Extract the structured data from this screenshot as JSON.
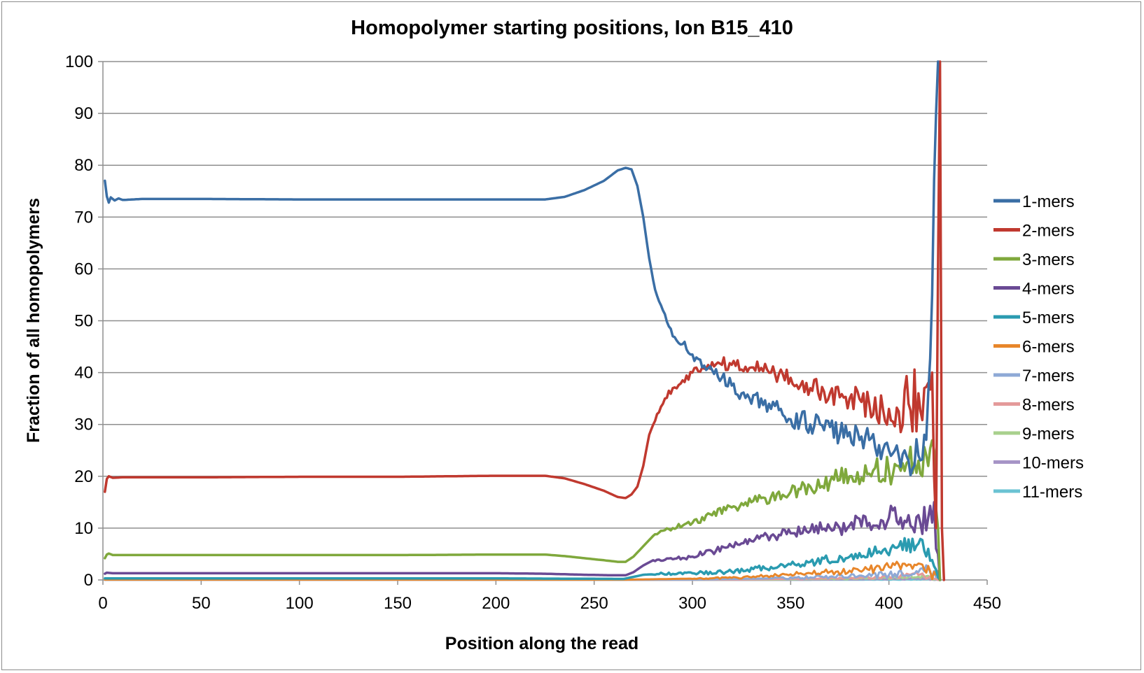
{
  "chart_data": {
    "type": "line",
    "title": "Homopolymer starting positions, Ion B15_410",
    "xlabel": "Position along the read",
    "ylabel": "Fraction of all homopolymers",
    "xlim": [
      0,
      450
    ],
    "ylim": [
      0,
      100
    ],
    "xticks": [
      0,
      50,
      100,
      150,
      200,
      250,
      300,
      350,
      400,
      450
    ],
    "yticks": [
      0,
      10,
      20,
      30,
      40,
      50,
      60,
      70,
      80,
      90,
      100
    ],
    "grid": "horizontal",
    "legend_position": "right",
    "series": [
      {
        "name": "1-mers",
        "color": "#3a6ea5",
        "width": 3.5,
        "points": [
          [
            1,
            77
          ],
          [
            2,
            74
          ],
          [
            3,
            72.8
          ],
          [
            4,
            73.8
          ],
          [
            6,
            73.2
          ],
          [
            8,
            73.6
          ],
          [
            10,
            73.3
          ],
          [
            20,
            73.5
          ],
          [
            50,
            73.5
          ],
          [
            100,
            73.4
          ],
          [
            150,
            73.4
          ],
          [
            200,
            73.4
          ],
          [
            225,
            73.4
          ],
          [
            235,
            73.9
          ],
          [
            245,
            75.2
          ],
          [
            255,
            77
          ],
          [
            262,
            79
          ],
          [
            266,
            79.5
          ],
          [
            269,
            79.2
          ],
          [
            272,
            76
          ],
          [
            275,
            70
          ],
          [
            278,
            62
          ],
          [
            281,
            56
          ],
          [
            285,
            52
          ],
          [
            290,
            47
          ],
          [
            295,
            45.5
          ],
          [
            300,
            43.5
          ],
          [
            305,
            41
          ],
          [
            310,
            40.5
          ],
          [
            315,
            39
          ],
          [
            320,
            37.5
          ],
          [
            325,
            36
          ],
          [
            330,
            34
          ],
          [
            335,
            35
          ],
          [
            340,
            33
          ],
          [
            345,
            33
          ],
          [
            350,
            31
          ],
          [
            355,
            31
          ],
          [
            360,
            30
          ],
          [
            365,
            30
          ],
          [
            370,
            29.5
          ],
          [
            375,
            28
          ],
          [
            380,
            28.5
          ],
          [
            385,
            27
          ],
          [
            390,
            27
          ],
          [
            395,
            26
          ],
          [
            400,
            25
          ],
          [
            405,
            24
          ],
          [
            410,
            23
          ],
          [
            415,
            24
          ],
          [
            418,
            28
          ],
          [
            420,
            36
          ],
          [
            422,
            55
          ],
          [
            424,
            90
          ],
          [
            425,
            100
          ]
        ],
        "noise": [
          [
            280,
            0.3
          ],
          [
            300,
            1
          ],
          [
            330,
            1.5
          ],
          [
            360,
            2
          ],
          [
            390,
            2.5
          ],
          [
            410,
            3
          ],
          [
            418,
            5
          ]
        ]
      },
      {
        "name": "2-mers",
        "color": "#c0392f",
        "width": 3.5,
        "points": [
          [
            1,
            17
          ],
          [
            2,
            19.5
          ],
          [
            3,
            20
          ],
          [
            5,
            19.7
          ],
          [
            10,
            19.8
          ],
          [
            50,
            19.8
          ],
          [
            100,
            19.9
          ],
          [
            150,
            19.9
          ],
          [
            200,
            20.1
          ],
          [
            225,
            20.1
          ],
          [
            235,
            19.6
          ],
          [
            245,
            18.5
          ],
          [
            255,
            17.2
          ],
          [
            262,
            16
          ],
          [
            266,
            15.8
          ],
          [
            269,
            16.5
          ],
          [
            272,
            18
          ],
          [
            275,
            22
          ],
          [
            278,
            28
          ],
          [
            282,
            32
          ],
          [
            286,
            35
          ],
          [
            290,
            37
          ],
          [
            295,
            38.5
          ],
          [
            300,
            40
          ],
          [
            305,
            41
          ],
          [
            310,
            42
          ],
          [
            320,
            41.5
          ],
          [
            330,
            41
          ],
          [
            340,
            40
          ],
          [
            350,
            39
          ],
          [
            360,
            37
          ],
          [
            370,
            36
          ],
          [
            380,
            35
          ],
          [
            390,
            34
          ],
          [
            400,
            33
          ],
          [
            405,
            32.5
          ],
          [
            410,
            34
          ],
          [
            415,
            36
          ],
          [
            418,
            37
          ],
          [
            420,
            38
          ],
          [
            422,
            40
          ],
          [
            423,
            20
          ],
          [
            424,
            10
          ],
          [
            425,
            60
          ],
          [
            426,
            100
          ],
          [
            427,
            10
          ],
          [
            428,
            0
          ]
        ],
        "noise": [
          [
            280,
            0.3
          ],
          [
            300,
            1
          ],
          [
            330,
            1.5
          ],
          [
            360,
            2
          ],
          [
            390,
            3
          ],
          [
            405,
            4
          ],
          [
            415,
            9
          ],
          [
            420,
            12
          ]
        ]
      },
      {
        "name": "3-mers",
        "color": "#7fa83c",
        "width": 3.5,
        "points": [
          [
            1,
            4.2
          ],
          [
            2,
            4.9
          ],
          [
            3,
            5.1
          ],
          [
            5,
            4.8
          ],
          [
            10,
            4.8
          ],
          [
            50,
            4.8
          ],
          [
            100,
            4.8
          ],
          [
            150,
            4.8
          ],
          [
            200,
            4.9
          ],
          [
            225,
            4.9
          ],
          [
            235,
            4.6
          ],
          [
            245,
            4.2
          ],
          [
            255,
            3.8
          ],
          [
            262,
            3.5
          ],
          [
            266,
            3.5
          ],
          [
            270,
            4.5
          ],
          [
            275,
            6.5
          ],
          [
            280,
            8.5
          ],
          [
            285,
            9.5
          ],
          [
            290,
            10
          ],
          [
            300,
            11
          ],
          [
            310,
            12.5
          ],
          [
            320,
            14
          ],
          [
            330,
            15
          ],
          [
            340,
            16
          ],
          [
            350,
            17
          ],
          [
            360,
            18
          ],
          [
            370,
            19
          ],
          [
            380,
            20
          ],
          [
            390,
            20.5
          ],
          [
            400,
            21
          ],
          [
            405,
            22
          ],
          [
            410,
            23
          ],
          [
            415,
            23
          ],
          [
            420,
            22
          ],
          [
            423,
            25
          ],
          [
            425,
            10
          ],
          [
            426,
            0
          ]
        ],
        "noise": [
          [
            280,
            0.3
          ],
          [
            300,
            0.6
          ],
          [
            330,
            1
          ],
          [
            360,
            1.5
          ],
          [
            390,
            2.5
          ],
          [
            410,
            4
          ],
          [
            418,
            5
          ]
        ]
      },
      {
        "name": "4-mers",
        "color": "#6a4a94",
        "width": 3.5,
        "points": [
          [
            1,
            1.2
          ],
          [
            2,
            1.4
          ],
          [
            5,
            1.3
          ],
          [
            50,
            1.3
          ],
          [
            100,
            1.3
          ],
          [
            150,
            1.3
          ],
          [
            200,
            1.3
          ],
          [
            225,
            1.2
          ],
          [
            245,
            1.0
          ],
          [
            260,
            0.9
          ],
          [
            266,
            0.9
          ],
          [
            270,
            1.5
          ],
          [
            275,
            2.8
          ],
          [
            280,
            3.8
          ],
          [
            290,
            4
          ],
          [
            300,
            4.5
          ],
          [
            310,
            5.5
          ],
          [
            320,
            6.5
          ],
          [
            330,
            7.5
          ],
          [
            340,
            8.5
          ],
          [
            350,
            9
          ],
          [
            360,
            9.5
          ],
          [
            370,
            10
          ],
          [
            380,
            10.5
          ],
          [
            390,
            11
          ],
          [
            400,
            12
          ],
          [
            410,
            12.5
          ],
          [
            415,
            12.5
          ],
          [
            420,
            12
          ],
          [
            423,
            15
          ],
          [
            425,
            5
          ],
          [
            426,
            0
          ]
        ],
        "noise": [
          [
            280,
            0.2
          ],
          [
            300,
            0.5
          ],
          [
            330,
            0.8
          ],
          [
            360,
            1.2
          ],
          [
            390,
            2
          ],
          [
            410,
            3
          ],
          [
            418,
            4
          ]
        ]
      },
      {
        "name": "5-mers",
        "color": "#2a9bb0",
        "width": 3.5,
        "points": [
          [
            1,
            0.3
          ],
          [
            50,
            0.3
          ],
          [
            100,
            0.3
          ],
          [
            200,
            0.3
          ],
          [
            265,
            0.2
          ],
          [
            275,
            1
          ],
          [
            285,
            1.2
          ],
          [
            300,
            1.3
          ],
          [
            320,
            1.6
          ],
          [
            340,
            2.5
          ],
          [
            360,
            3.5
          ],
          [
            380,
            4.5
          ],
          [
            395,
            5.5
          ],
          [
            405,
            6.5
          ],
          [
            415,
            7
          ],
          [
            420,
            6
          ],
          [
            424,
            2
          ],
          [
            426,
            0
          ]
        ],
        "noise": [
          [
            280,
            0.2
          ],
          [
            320,
            0.4
          ],
          [
            360,
            0.8
          ],
          [
            390,
            1.2
          ],
          [
            410,
            1.8
          ]
        ]
      },
      {
        "name": "6-mers",
        "color": "#e8862a",
        "width": 3.0,
        "points": [
          [
            1,
            0.05
          ],
          [
            265,
            0.05
          ],
          [
            290,
            0.2
          ],
          [
            320,
            0.4
          ],
          [
            340,
            0.8
          ],
          [
            360,
            1.3
          ],
          [
            380,
            1.8
          ],
          [
            400,
            2.5
          ],
          [
            410,
            3
          ],
          [
            418,
            2
          ],
          [
            424,
            1
          ],
          [
            426,
            0
          ]
        ],
        "noise": [
          [
            300,
            0.1
          ],
          [
            340,
            0.3
          ],
          [
            380,
            0.7
          ],
          [
            410,
            1.2
          ]
        ]
      },
      {
        "name": "7-mers",
        "color": "#8ea9d6",
        "width": 3.0,
        "points": [
          [
            1,
            0
          ],
          [
            300,
            0.05
          ],
          [
            340,
            0.3
          ],
          [
            380,
            0.7
          ],
          [
            400,
            1
          ],
          [
            415,
            1.5
          ],
          [
            420,
            2.5
          ],
          [
            424,
            0.5
          ],
          [
            426,
            0
          ]
        ],
        "noise": [
          [
            340,
            0.2
          ],
          [
            380,
            0.4
          ],
          [
            410,
            0.8
          ]
        ]
      },
      {
        "name": "8-mers",
        "color": "#e49a9a",
        "width": 3.0,
        "points": [
          [
            1,
            0
          ],
          [
            320,
            0.05
          ],
          [
            350,
            0.2
          ],
          [
            380,
            0.4
          ],
          [
            400,
            0.7
          ],
          [
            415,
            1
          ],
          [
            422,
            0.5
          ],
          [
            426,
            0
          ]
        ],
        "noise": [
          [
            350,
            0.1
          ],
          [
            390,
            0.3
          ],
          [
            410,
            0.5
          ]
        ]
      },
      {
        "name": "9-mers",
        "color": "#a8d08d",
        "width": 3.0,
        "points": [
          [
            1,
            0
          ],
          [
            340,
            0.05
          ],
          [
            370,
            0.2
          ],
          [
            395,
            0.4
          ],
          [
            410,
            0.6
          ],
          [
            420,
            0.8
          ],
          [
            424,
            0.2
          ],
          [
            426,
            0
          ]
        ],
        "noise": [
          [
            370,
            0.1
          ],
          [
            400,
            0.3
          ],
          [
            415,
            0.4
          ]
        ]
      },
      {
        "name": "10-mers",
        "color": "#a694c6",
        "width": 3.0,
        "points": [
          [
            1,
            0
          ],
          [
            350,
            0.02
          ],
          [
            380,
            0.1
          ],
          [
            400,
            0.2
          ],
          [
            415,
            0.3
          ],
          [
            424,
            0.1
          ],
          [
            426,
            0
          ]
        ],
        "noise": [
          [
            380,
            0.05
          ],
          [
            410,
            0.2
          ]
        ]
      },
      {
        "name": "11-mers",
        "color": "#6bc3d3",
        "width": 3.0,
        "points": [
          [
            1,
            0
          ],
          [
            360,
            0.02
          ],
          [
            390,
            0.05
          ],
          [
            410,
            0.1
          ],
          [
            420,
            0.15
          ],
          [
            426,
            0
          ]
        ],
        "noise": [
          [
            390,
            0.03
          ],
          [
            415,
            0.1
          ]
        ]
      }
    ]
  }
}
